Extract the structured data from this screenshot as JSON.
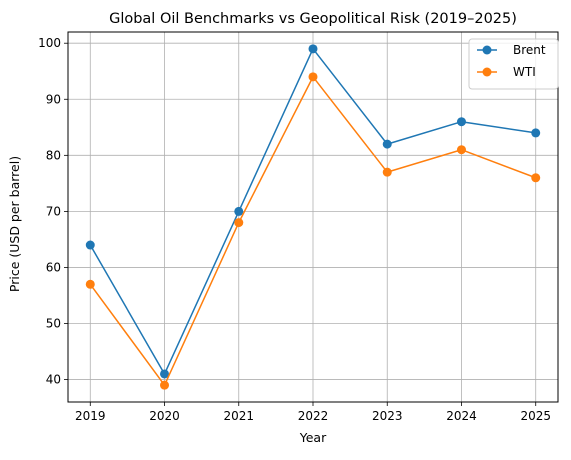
{
  "chart_data": {
    "type": "line",
    "title": "Global Oil Benchmarks vs Geopolitical Risk (2019–2025)",
    "xlabel": "Year",
    "ylabel": "Price (USD per barrel)",
    "x": [
      2019,
      2020,
      2021,
      2022,
      2023,
      2024,
      2025
    ],
    "x_tick_labels": [
      "2019",
      "2020",
      "2021",
      "2022",
      "2023",
      "2024",
      "2025"
    ],
    "y_ticks": [
      40,
      50,
      60,
      70,
      80,
      90,
      100
    ],
    "y_tick_labels": [
      "40",
      "50",
      "60",
      "70",
      "80",
      "90",
      "100"
    ],
    "xlim": [
      2018.7,
      2025.3
    ],
    "ylim": [
      36,
      102
    ],
    "grid": true,
    "legend_position": "top-right",
    "series": [
      {
        "name": "Brent",
        "color": "#1f77b4",
        "marker": "circle",
        "values": [
          64,
          41,
          70,
          99,
          82,
          86,
          84
        ]
      },
      {
        "name": "WTI",
        "color": "#ff7f0e",
        "marker": "circle",
        "values": [
          57,
          39,
          68,
          94,
          77,
          81,
          76
        ]
      }
    ]
  }
}
